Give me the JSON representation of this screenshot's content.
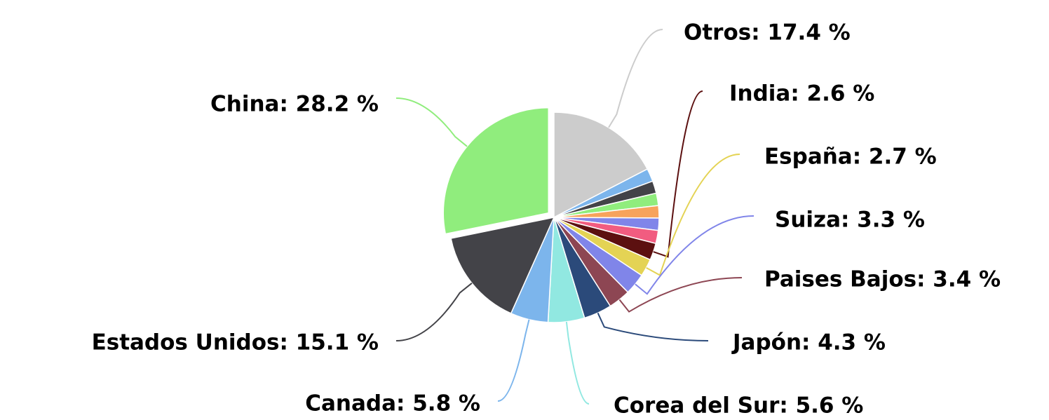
{
  "chart_data": {
    "type": "pie",
    "labels": [
      "Otros: 17.4 %",
      null,
      null,
      null,
      null,
      null,
      null,
      "India: 2.6 %",
      "España: 2.7 %",
      "Suiza: 3.3 %",
      "Paises Bajos: 3.4 %",
      "Japón: 4.3 %",
      "Corea del Sur: 5.6 %",
      "Canada: 5.8 %",
      "Estados Unidos: 15.1 %",
      "China: 28.2 %"
    ],
    "values": [
      17.4,
      2.0,
      1.9,
      1.9,
      1.9,
      1.9,
      2.0,
      2.6,
      2.7,
      3.3,
      3.4,
      4.3,
      5.6,
      5.8,
      15.1,
      28.2
    ],
    "colors": [
      "#cccccc",
      "#7cb5ec",
      "#434348",
      "#90ed7d",
      "#f7a35c",
      "#8085e9",
      "#f15c80",
      "#5c1010",
      "#e4d354",
      "#8085e9",
      "#8d4653",
      "#2b4a7a",
      "#91e8e1",
      "#7cb5ec",
      "#434348",
      "#90ed7d"
    ],
    "exploded": [
      15
    ]
  }
}
